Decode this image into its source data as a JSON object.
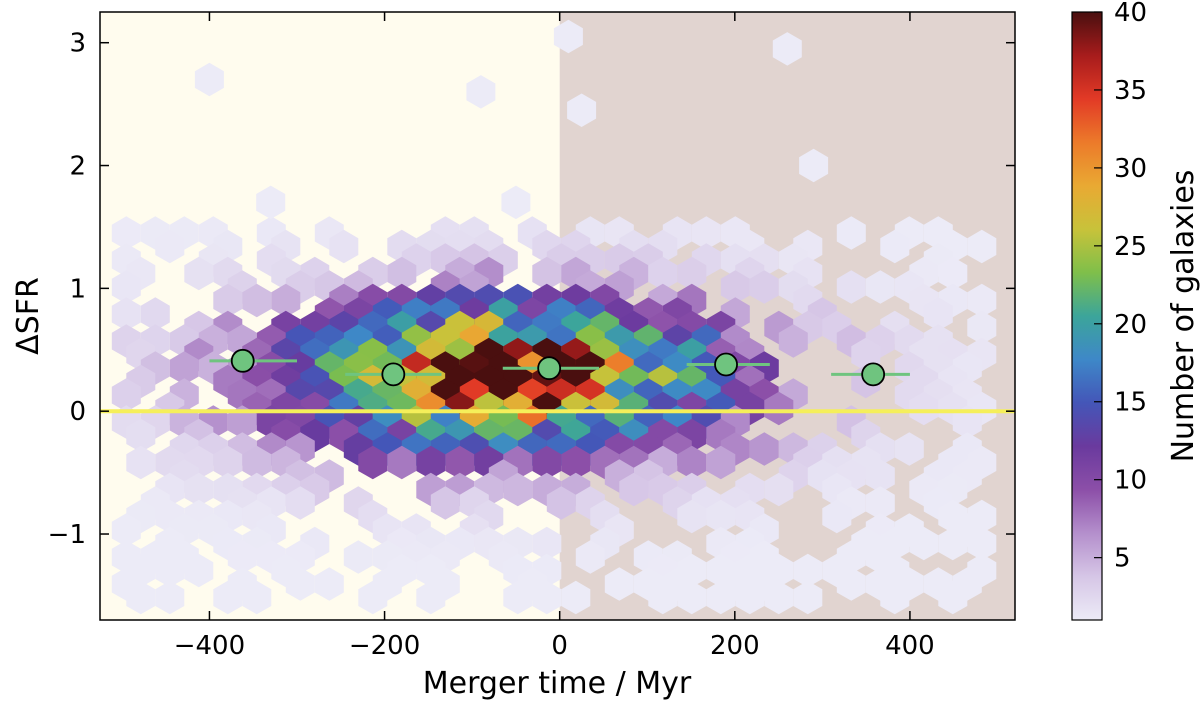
{
  "chart_data": {
    "type": "hexbin",
    "xlabel": "Merger time / Myr",
    "ylabel": "ΔSFR",
    "xlim": [
      -525,
      520
    ],
    "ylim": [
      -1.7,
      3.25
    ],
    "x_ticks": [
      -400,
      -200,
      0,
      200,
      400
    ],
    "x_tick_labels": [
      "−400",
      "−200",
      "0",
      "200",
      "400"
    ],
    "y_ticks": [
      -1,
      0,
      1,
      2,
      3
    ],
    "y_tick_labels": [
      "−1",
      "0",
      "1",
      "2",
      "3"
    ],
    "shaded_regions": [
      {
        "x_range": [
          -525,
          0
        ],
        "color": "#fffcee"
      },
      {
        "x_range": [
          0,
          520
        ],
        "color": "#e1d4d0"
      }
    ],
    "reference_line": {
      "y": 0,
      "color": "#f5ef5a"
    },
    "colorbar": {
      "label": "Number of galaxies",
      "range": [
        1,
        40
      ],
      "ticks": [
        5,
        10,
        15,
        20,
        25,
        30,
        35,
        40
      ],
      "tick_labels": [
        "5",
        "10",
        "15",
        "20",
        "25",
        "30",
        "35",
        "40"
      ],
      "colormap": [
        "#ecebf7",
        "#d6c6e6",
        "#b48fcc",
        "#8c4fa8",
        "#6a3a9e",
        "#4456b8",
        "#3e88c8",
        "#3ca59a",
        "#7fbf4a",
        "#c8c23a",
        "#e9a933",
        "#ec7a2a",
        "#e23a26",
        "#a71c1c",
        "#4a0f0f"
      ]
    },
    "density_peak": {
      "x": -60,
      "y": 0.25
    },
    "median_points": {
      "color": "#6fc47f",
      "x": [
        -362,
        -190,
        -12,
        190,
        358
      ],
      "y": [
        0.41,
        0.3,
        0.35,
        0.38,
        0.3
      ],
      "x_range": [
        [
          -400,
          -300
        ],
        [
          -245,
          -135
        ],
        [
          -65,
          45
        ],
        [
          145,
          240
        ],
        [
          310,
          400
        ]
      ]
    }
  }
}
